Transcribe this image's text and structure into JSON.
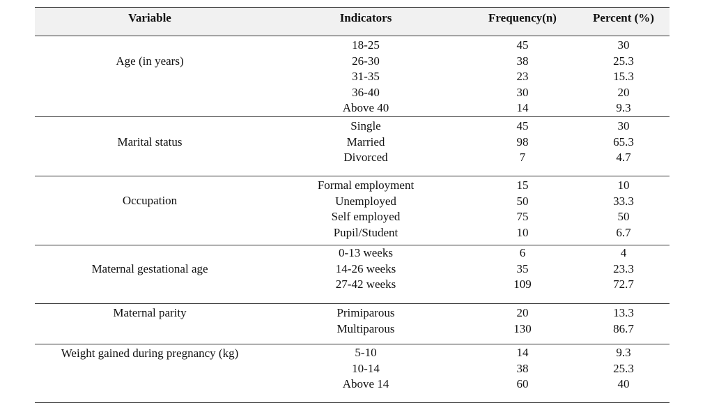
{
  "headers": {
    "variable": "Variable",
    "indicators": "Indicators",
    "frequency": "Frequency(n)",
    "percent": "Percent (%)"
  },
  "groups": [
    {
      "variable": "Age (in years)",
      "indicators": [
        "18-25",
        "26-30",
        "31-35",
        "36-40",
        "Above 40"
      ],
      "frequency": [
        "45",
        "38",
        "23",
        "30",
        "14"
      ],
      "percent": [
        "30",
        "25.3",
        "15.3",
        "20",
        "9.3"
      ]
    },
    {
      "variable": "Marital status",
      "indicators": [
        "Single",
        "Married",
        "Divorced"
      ],
      "frequency": [
        "45",
        "98",
        "7"
      ],
      "percent": [
        "30",
        "65.3",
        "4.7"
      ]
    },
    {
      "variable": "Occupation",
      "indicators": [
        "Formal employment",
        "Unemployed",
        "Self employed",
        "Pupil/Student"
      ],
      "frequency": [
        "15",
        "50",
        "75",
        "10"
      ],
      "percent": [
        "10",
        "33.3",
        "50",
        "6.7"
      ]
    },
    {
      "variable": "Maternal gestational age",
      "indicators": [
        "0-13 weeks",
        "14-26 weeks",
        "27-42 weeks"
      ],
      "frequency": [
        "6",
        "35",
        "109"
      ],
      "percent": [
        "4",
        "23.3",
        "72.7"
      ]
    },
    {
      "variable": "Maternal parity",
      "indicators": [
        "Primiparous",
        "Multiparous"
      ],
      "frequency": [
        "20",
        "130"
      ],
      "percent": [
        "13.3",
        "86.7"
      ]
    },
    {
      "variable": "Weight gained during pregnancy (kg)",
      "indicators": [
        "5-10",
        "10-14",
        "Above 14"
      ],
      "frequency": [
        "14",
        "38",
        "60"
      ],
      "percent": [
        "9.3",
        "25.3",
        "40"
      ]
    }
  ]
}
